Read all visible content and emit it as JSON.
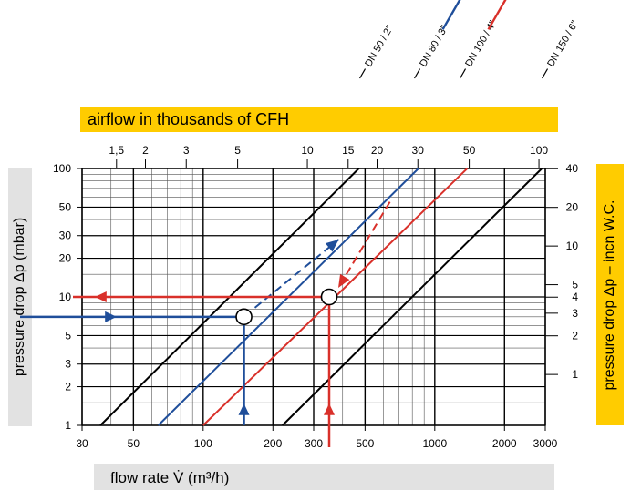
{
  "title_top": "airflow in thousands of CFH",
  "xlabel_bottom": "flow rate V̇ (m³/h)",
  "ylabel_left": "pressure drop Δp (mbar)",
  "ylabel_right": "pressure drop Δp – incn W.C.",
  "chart_data": {
    "type": "line",
    "scale": "log-log",
    "grid": true,
    "x_bottom": {
      "label": "flow rate V̇ (m³/h)",
      "range": [
        30,
        3000
      ],
      "ticks": [
        30,
        50,
        100,
        200,
        300,
        500,
        1000,
        2000,
        3000
      ],
      "tick_labels": [
        "30",
        "50",
        "100",
        "200",
        "300",
        "500",
        "1000",
        "2000",
        "3000"
      ]
    },
    "x_top": {
      "label": "airflow in thousands of CFH",
      "ticks": [
        1.5,
        2,
        3,
        5,
        10,
        15,
        20,
        30,
        50,
        100
      ],
      "tick_labels": [
        "1,5",
        "2",
        "3",
        "5",
        "10",
        "15",
        "20",
        "30",
        "50",
        "100"
      ]
    },
    "y_left": {
      "label": "pressure drop Δp (mbar)",
      "range": [
        1,
        100
      ],
      "ticks": [
        1,
        2,
        3,
        5,
        10,
        20,
        30,
        50,
        100
      ],
      "tick_labels": [
        "1",
        "2",
        "3",
        "5",
        "10",
        "20",
        "30",
        "50",
        "100"
      ]
    },
    "y_right": {
      "label": "pressure drop Δp – incn W.C.",
      "ticks": [
        1,
        2,
        3,
        4,
        5,
        10,
        20,
        40
      ],
      "tick_labels": [
        "1",
        "2",
        "3",
        "4",
        "5",
        "10",
        "20",
        "40"
      ]
    },
    "series": [
      {
        "name": "DN 50 / 2\"",
        "color": "#000000",
        "points": [
          [
            36,
            1
          ],
          [
            470,
            100
          ]
        ]
      },
      {
        "name": "DN 80 / 3\"",
        "color": "#1f4e9a",
        "points": [
          [
            64,
            1
          ],
          [
            850,
            100
          ]
        ]
      },
      {
        "name": "DN 100 / 4\"",
        "color": "#d9302a",
        "points": [
          [
            100,
            1
          ],
          [
            1380,
            100
          ]
        ]
      },
      {
        "name": "DN 150 / 6\"",
        "color": "#000000",
        "points": [
          [
            220,
            1
          ],
          [
            2900,
            100
          ]
        ]
      }
    ],
    "examples": [
      {
        "color": "#1f4e9a",
        "flow": 150,
        "pressure_drop": 7
      },
      {
        "color": "#d9302a",
        "flow": 350,
        "pressure_drop": 10
      }
    ]
  }
}
